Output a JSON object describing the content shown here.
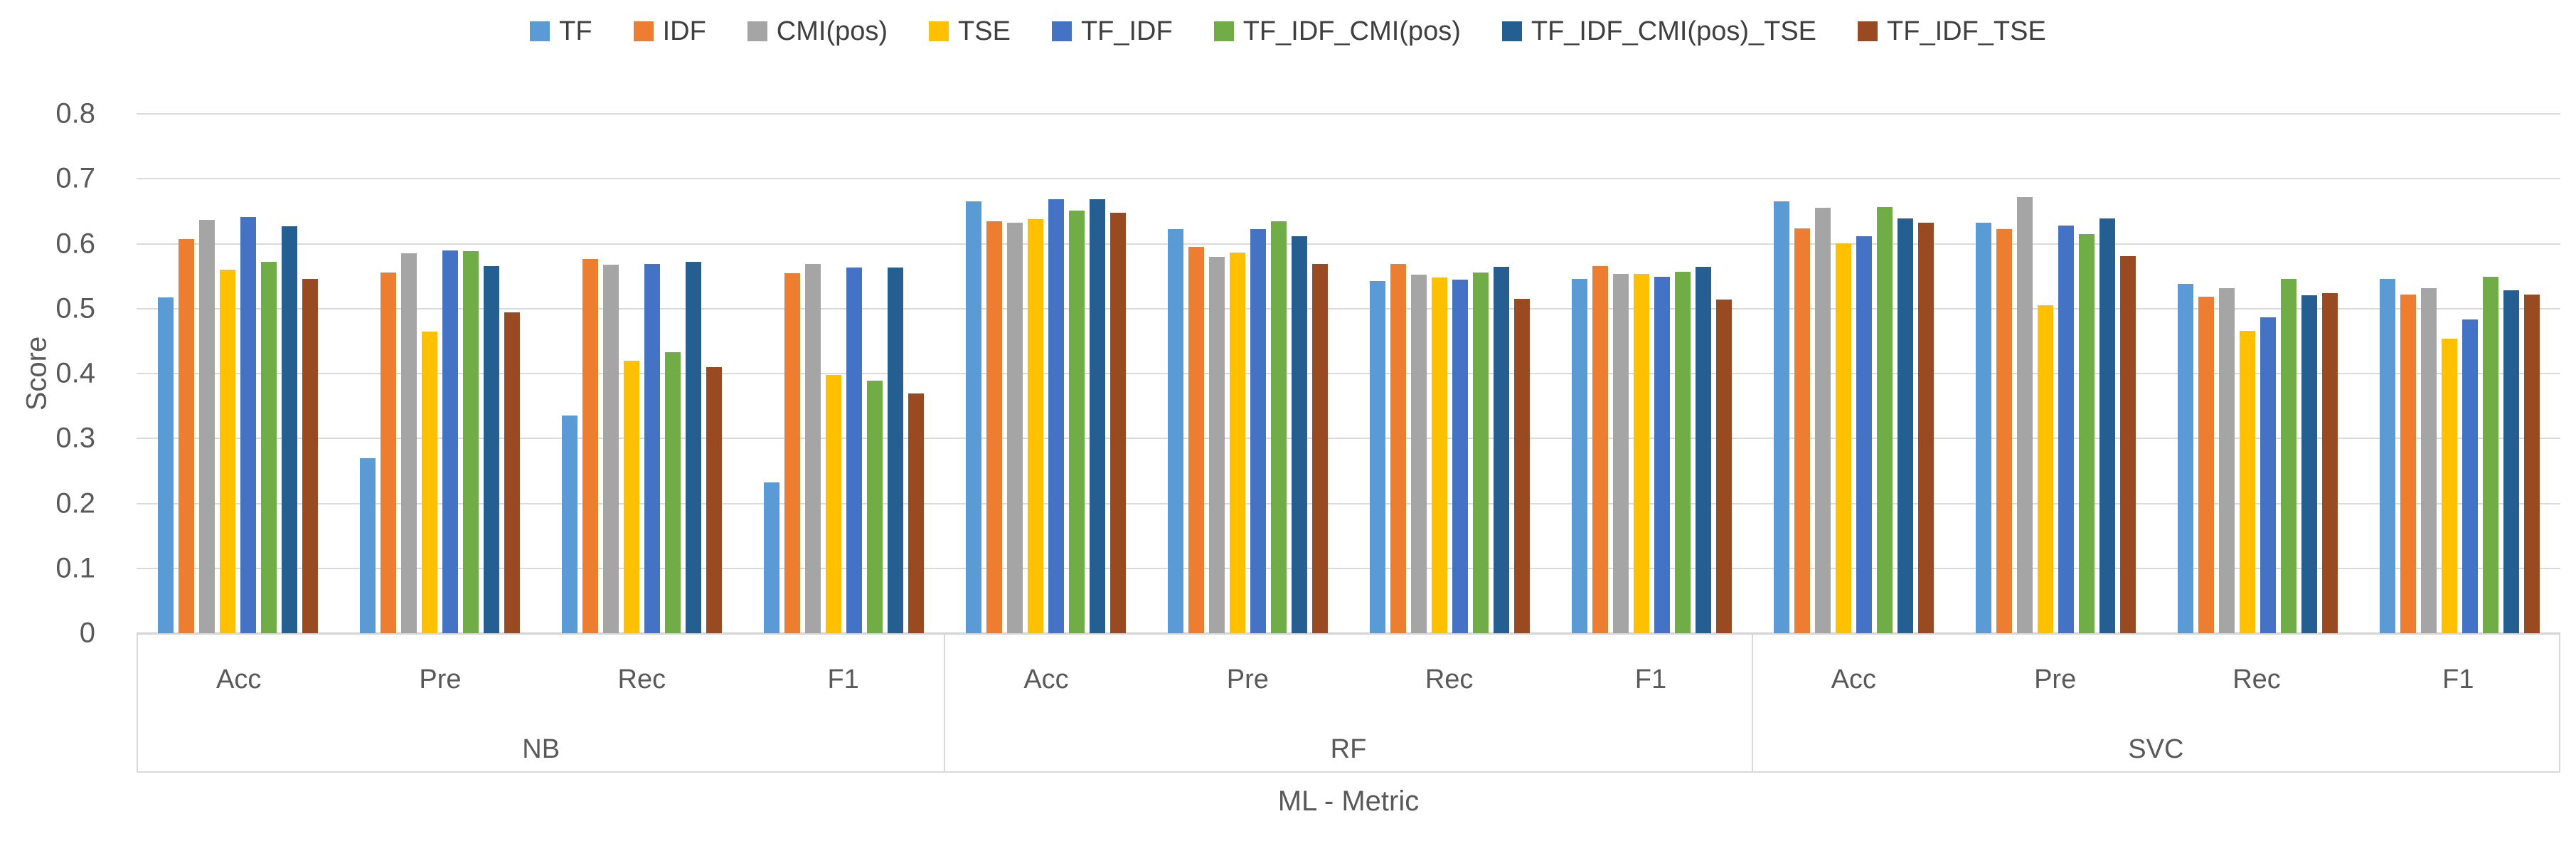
{
  "chart_data": {
    "type": "bar",
    "title": "",
    "xlabel": "ML - Metric",
    "ylabel": "Score",
    "ylim": [
      0,
      0.8
    ],
    "ytick_labels_top_to_bottom": [
      "0.8",
      "0.7",
      "0.6",
      "0.5",
      "0.4",
      "0.3",
      "0.2",
      "0.1",
      "0"
    ],
    "grid": "horizontal",
    "legend_position": "top",
    "grid_color": "#dadada",
    "axis_color": "#c6c6c6",
    "text_color": "#595959",
    "group_labels": [
      "NB",
      "RF",
      "SVC"
    ],
    "metric_labels": [
      "Acc",
      "Pre",
      "Rec",
      "F1"
    ],
    "value_order": [
      "NB-Acc",
      "NB-Pre",
      "NB-Rec",
      "NB-F1",
      "RF-Acc",
      "RF-Pre",
      "RF-Rec",
      "RF-F1",
      "SVC-Acc",
      "SVC-Pre",
      "SVC-Rec",
      "SVC-F1"
    ],
    "series": [
      {
        "name": "TF",
        "color": "#5B9BD5",
        "values": [
          0.517,
          0.27,
          0.335,
          0.232,
          0.665,
          0.622,
          0.543,
          0.546,
          0.665,
          0.632,
          0.538,
          0.546
        ]
      },
      {
        "name": "IDF",
        "color": "#ED7D31",
        "values": [
          0.607,
          0.556,
          0.576,
          0.554,
          0.635,
          0.595,
          0.569,
          0.566,
          0.624,
          0.622,
          0.518,
          0.522
        ]
      },
      {
        "name": "CMI(pos)",
        "color": "#A5A5A5",
        "values": [
          0.637,
          0.585,
          0.568,
          0.569,
          0.632,
          0.58,
          0.552,
          0.553,
          0.655,
          0.672,
          0.531,
          0.531
        ]
      },
      {
        "name": "TSE",
        "color": "#FFC000",
        "values": [
          0.56,
          0.465,
          0.42,
          0.398,
          0.638,
          0.586,
          0.548,
          0.553,
          0.601,
          0.505,
          0.466,
          0.454
        ]
      },
      {
        "name": "TF_IDF",
        "color": "#4472C4",
        "values": [
          0.641,
          0.59,
          0.569,
          0.563,
          0.668,
          0.622,
          0.545,
          0.549,
          0.612,
          0.628,
          0.487,
          0.483
        ]
      },
      {
        "name": "TF_IDF_CMI(pos)",
        "color": "#70AD47",
        "values": [
          0.572,
          0.588,
          0.433,
          0.389,
          0.651,
          0.635,
          0.556,
          0.557,
          0.656,
          0.615,
          0.546,
          0.549
        ]
      },
      {
        "name": "TF_IDF_CMI(pos)_TSE",
        "color": "#255E91",
        "values": [
          0.627,
          0.565,
          0.572,
          0.563,
          0.668,
          0.611,
          0.564,
          0.564,
          0.639,
          0.639,
          0.521,
          0.528
        ]
      },
      {
        "name": "TF_IDF_TSE",
        "color": "#9A4A21",
        "values": [
          0.546,
          0.494,
          0.41,
          0.369,
          0.648,
          0.569,
          0.515,
          0.514,
          0.632,
          0.581,
          0.524,
          0.522
        ]
      }
    ]
  }
}
